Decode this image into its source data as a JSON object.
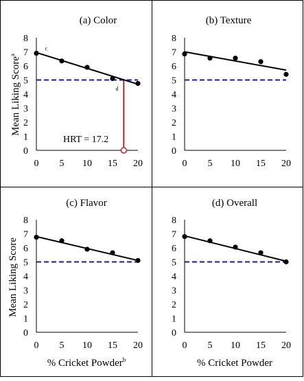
{
  "colors": {
    "data": "#000000",
    "threshold": "#1a1aa6",
    "hrt_line": "#c0282b",
    "border": "#000000"
  },
  "chart_data": [
    {
      "type": "scatter",
      "title": "(a) Color",
      "ylabel": "Mean Liking Score",
      "ylabel_sup": "a",
      "xlabel": "",
      "xlabel_sup": "",
      "xticks": [
        0,
        5,
        10,
        15,
        20
      ],
      "yticks": [
        0,
        1,
        2,
        3,
        4,
        5,
        6,
        7,
        8
      ],
      "xlim": [
        0,
        20
      ],
      "ylim": [
        0,
        8
      ],
      "x": [
        0,
        5,
        10,
        15,
        20
      ],
      "y": [
        6.9,
        6.35,
        5.9,
        5.1,
        4.75
      ],
      "trendline": {
        "x": [
          0,
          20
        ],
        "y": [
          6.95,
          4.7
        ]
      },
      "threshold": 5,
      "annotations": [
        {
          "x": 1.7,
          "y": 7.1,
          "text": "c"
        },
        {
          "x": 15.6,
          "y": 4.25,
          "text": "d"
        }
      ],
      "hrt": {
        "x": 17.2,
        "y": 5,
        "label": "HRT = 17.2"
      }
    },
    {
      "type": "scatter",
      "title": "(b) Texture",
      "ylabel": "",
      "ylabel_sup": "",
      "xlabel": "",
      "xlabel_sup": "",
      "xticks": [
        0,
        5,
        10,
        15,
        20
      ],
      "yticks": [
        0,
        1,
        2,
        3,
        4,
        5,
        6,
        7,
        8
      ],
      "xlim": [
        0,
        20
      ],
      "ylim": [
        0,
        8
      ],
      "x": [
        0,
        5,
        10,
        15,
        20
      ],
      "y": [
        6.85,
        6.55,
        6.55,
        6.3,
        5.4
      ],
      "trendline": {
        "x": [
          0,
          20
        ],
        "y": [
          7.0,
          5.7
        ]
      },
      "threshold": 5,
      "annotations": []
    },
    {
      "type": "scatter",
      "title": "(c) Flavor",
      "ylabel": "Mean Liking Score",
      "ylabel_sup": "",
      "xlabel": "% Cricket Powder",
      "xlabel_sup": "b",
      "xticks": [
        0,
        5,
        10,
        15,
        20
      ],
      "yticks": [
        0,
        1,
        2,
        3,
        4,
        5,
        6,
        7,
        8
      ],
      "xlim": [
        0,
        20
      ],
      "ylim": [
        0,
        8
      ],
      "x": [
        0,
        5,
        10,
        15,
        20
      ],
      "y": [
        6.75,
        6.5,
        5.9,
        5.65,
        5.1
      ],
      "trendline": {
        "x": [
          0,
          20
        ],
        "y": [
          6.8,
          5.1
        ]
      },
      "threshold": 5,
      "annotations": []
    },
    {
      "type": "scatter",
      "title": "(d) Overall",
      "ylabel": "",
      "ylabel_sup": "",
      "xlabel": "% Cricket Powder",
      "xlabel_sup": "",
      "xticks": [
        0,
        5,
        10,
        15,
        20
      ],
      "yticks": [
        0,
        1,
        2,
        3,
        4,
        5,
        6,
        7,
        8
      ],
      "xlim": [
        0,
        20
      ],
      "ylim": [
        0,
        8
      ],
      "x": [
        0,
        5,
        10,
        15,
        20
      ],
      "y": [
        6.8,
        6.5,
        6.05,
        5.65,
        5.0
      ],
      "trendline": {
        "x": [
          0,
          20
        ],
        "y": [
          6.85,
          5.05
        ]
      },
      "threshold": 5,
      "annotations": []
    }
  ]
}
